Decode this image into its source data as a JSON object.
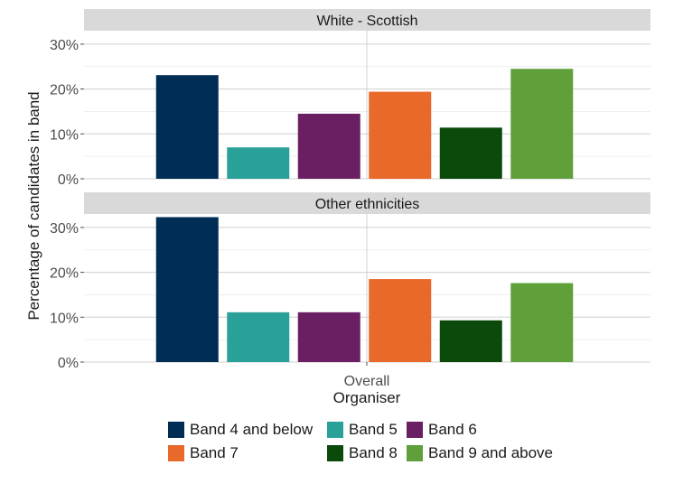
{
  "chart_data": {
    "type": "bar",
    "xlabel": "Organiser",
    "ylabel": "Percentage of candidates in band",
    "categories": [
      "Overall"
    ],
    "ylim": [
      0,
      33
    ],
    "yticks": [
      "0%",
      "10%",
      "20%",
      "30%"
    ],
    "grid": true,
    "legend_position": "bottom",
    "facets": [
      {
        "title": "White - Scottish",
        "series": [
          {
            "name": "Band 4 and below",
            "color": "#002d54",
            "values": [
              23.1
            ]
          },
          {
            "name": "Band 5",
            "color": "#2aa198",
            "values": [
              7.0
            ]
          },
          {
            "name": "Band 6",
            "color": "#6a1f63",
            "values": [
              14.5
            ]
          },
          {
            "name": "Band 7",
            "color": "#e8692a",
            "values": [
              19.4
            ]
          },
          {
            "name": "Band 8",
            "color": "#0c4a0c",
            "values": [
              11.4
            ]
          },
          {
            "name": "Band 9 and above",
            "color": "#5fa03b",
            "values": [
              24.5
            ]
          }
        ]
      },
      {
        "title": "Other ethnicities",
        "series": [
          {
            "name": "Band 4 and below",
            "color": "#002d54",
            "values": [
              32.3
            ]
          },
          {
            "name": "Band 5",
            "color": "#2aa198",
            "values": [
              11.1
            ]
          },
          {
            "name": "Band 6",
            "color": "#6a1f63",
            "values": [
              11.1
            ]
          },
          {
            "name": "Band 7",
            "color": "#e8692a",
            "values": [
              18.5
            ]
          },
          {
            "name": "Band 8",
            "color": "#0c4a0c",
            "values": [
              9.3
            ]
          },
          {
            "name": "Band 9 and above",
            "color": "#5fa03b",
            "values": [
              17.6
            ]
          }
        ]
      }
    ]
  },
  "legend": {
    "items": [
      {
        "label": "Band 4 and below",
        "color": "#002d54"
      },
      {
        "label": "Band 5",
        "color": "#2aa198"
      },
      {
        "label": "Band 6",
        "color": "#6a1f63"
      },
      {
        "label": "Band 7",
        "color": "#e8692a"
      },
      {
        "label": "Band 8",
        "color": "#0c4a0c"
      },
      {
        "label": "Band 9 and above",
        "color": "#5fa03b"
      }
    ]
  }
}
